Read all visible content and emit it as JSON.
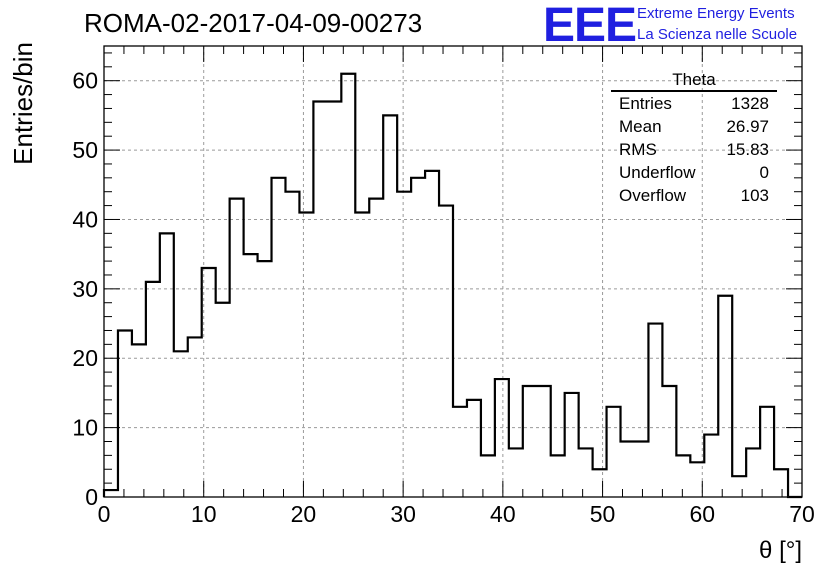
{
  "title": "ROMA-02-2017-04-09-00273",
  "logo": {
    "text": "EEE",
    "line1": "Extreme Energy Events",
    "line2": "La Scienza nelle Scuole",
    "color": "#1f1fe0"
  },
  "stats_box": {
    "title": "Theta",
    "rows": [
      {
        "label": "Entries",
        "value": "1328"
      },
      {
        "label": "Mean",
        "value": "26.97"
      },
      {
        "label": "RMS",
        "value": "15.83"
      },
      {
        "label": "Underflow",
        "value": "0"
      },
      {
        "label": "Overflow",
        "value": "103"
      }
    ]
  },
  "chart_data": {
    "type": "bar",
    "style": "step-histogram",
    "xlabel": "θ [°]",
    "ylabel": "Entries/bin",
    "xlim": [
      0,
      70
    ],
    "ylim": [
      0,
      65
    ],
    "bin_width": 1.4,
    "x_ticks": [
      0,
      10,
      20,
      30,
      40,
      50,
      60,
      70
    ],
    "y_ticks": [
      0,
      10,
      20,
      30,
      40,
      50,
      60
    ],
    "grid": true,
    "values": [
      1,
      24,
      22,
      31,
      38,
      21,
      23,
      33,
      28,
      43,
      35,
      34,
      46,
      44,
      41,
      57,
      57,
      61,
      41,
      43,
      55,
      44,
      46,
      47,
      42,
      13,
      14,
      6,
      17,
      7,
      16,
      16,
      6,
      15,
      7,
      4,
      13,
      8,
      8,
      25,
      16,
      6,
      5,
      9,
      29,
      3,
      7,
      13,
      4,
      0
    ],
    "line_color": "#000000"
  }
}
